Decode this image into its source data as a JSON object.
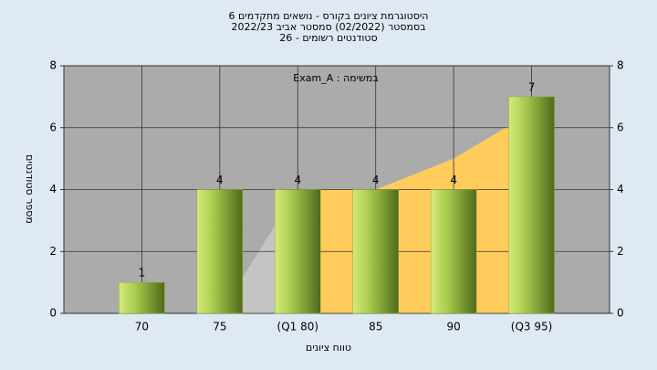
{
  "chart_data": {
    "type": "bar",
    "title": "היסטוגרמת ציונים בקורס - נושאים מתקדמים 6",
    "subtitle": "בסמסטר  (02/2022)  סמסטר אביב 2022/23",
    "subtitle2": "סטודנטים רשומים - 26",
    "annotation": "במשימה : Exam_A",
    "x_label": "טווח ציונים",
    "y_label": "מספר סטודנטים",
    "categories": [
      "70",
      "75",
      "(Q1 80)",
      "85",
      "90",
      "(Q3 95)"
    ],
    "values": [
      1,
      4,
      4,
      4,
      4,
      7
    ],
    "color": "#8fb03a",
    "areas": [
      {
        "color": "#c4c4c4",
        "values": [
          null,
          0,
          4,
          null,
          null,
          null
        ]
      },
      {
        "color": "#ffcc5c",
        "values": [
          null,
          null,
          4,
          4,
          5,
          6.5
        ]
      }
    ],
    "ylim": [
      0,
      8
    ],
    "yticks": [
      0,
      2,
      4,
      6,
      8
    ],
    "grid": true
  }
}
